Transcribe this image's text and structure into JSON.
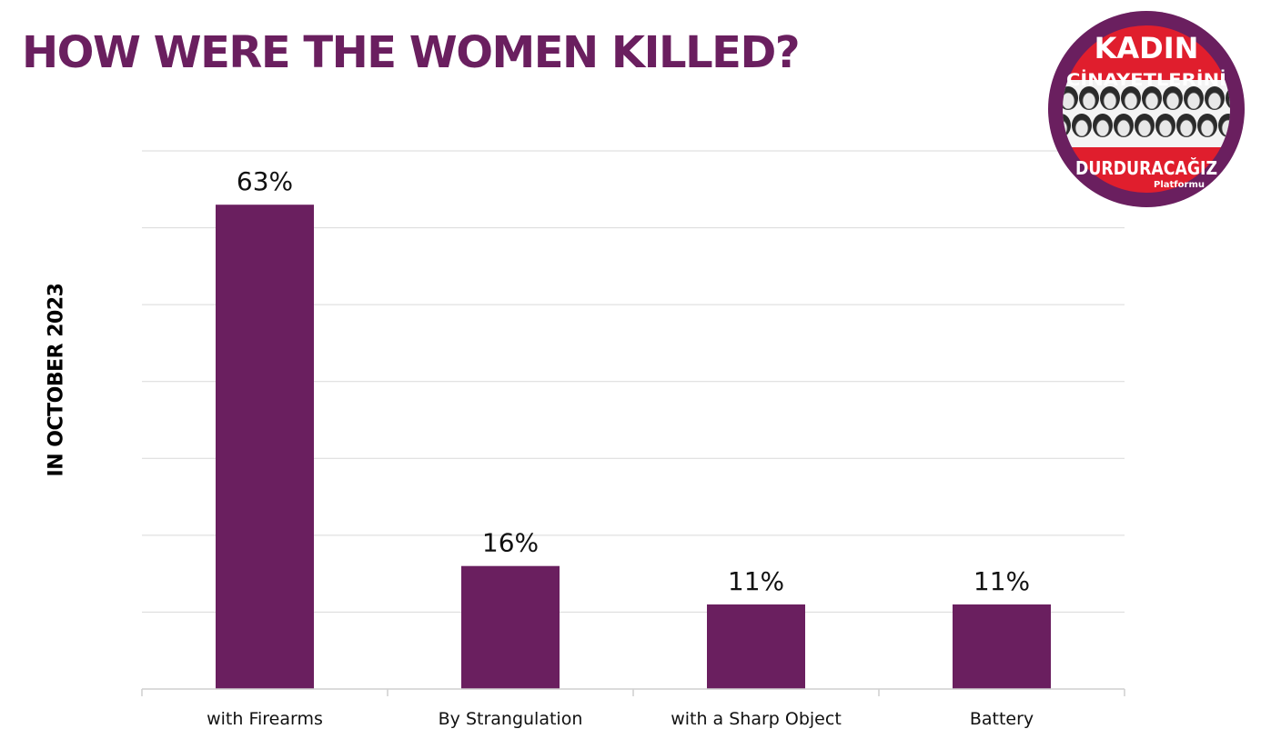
{
  "chart_data": {
    "type": "bar",
    "title": "HOW WERE THE WOMEN KILLED?",
    "ylabel": "IN OCTOBER 2023",
    "xlabel": "",
    "categories": [
      "with Firearms",
      "By Strangulation",
      "with a Sharp Object",
      "Battery"
    ],
    "values": [
      63,
      16,
      11,
      11
    ],
    "data_labels": [
      "63%",
      "16%",
      "11%",
      "11%"
    ],
    "ylim": [
      0,
      70
    ],
    "gridlines": true,
    "bar_color": "#6a1f5f"
  },
  "logo": {
    "line1": "KADIN",
    "line2": "CİNAYETLERİNİ",
    "line3": "DURDURACAĞIZ",
    "line4": "Platformu",
    "ring_color": "#6a1f5f",
    "band_color": "#e01e2d"
  }
}
